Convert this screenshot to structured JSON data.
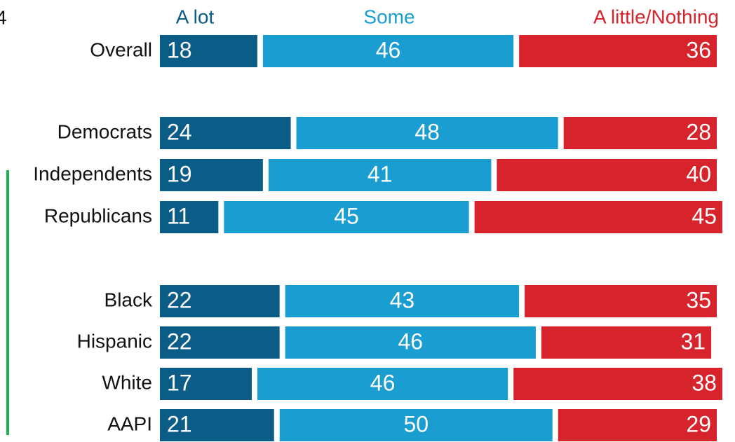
{
  "chart_data": {
    "type": "stacked-bar-horizontal",
    "title": "4",
    "categories": [
      "Overall",
      "Democrats",
      "Independents",
      "Republicans",
      "Black",
      "Hispanic",
      "White",
      "AAPI"
    ],
    "xlim": [
      0,
      100
    ],
    "series": [
      {
        "name": "A lot",
        "color": "#0b5d88",
        "values": [
          18,
          24,
          19,
          11,
          22,
          22,
          17,
          21
        ]
      },
      {
        "name": "Some",
        "color": "#1a9dd1",
        "values": [
          46,
          48,
          41,
          45,
          43,
          46,
          46,
          50
        ]
      },
      {
        "name": "A little/Nothing",
        "color": "#d6232c",
        "values": [
          36,
          28,
          40,
          45,
          35,
          31,
          38,
          29
        ]
      }
    ]
  }
}
